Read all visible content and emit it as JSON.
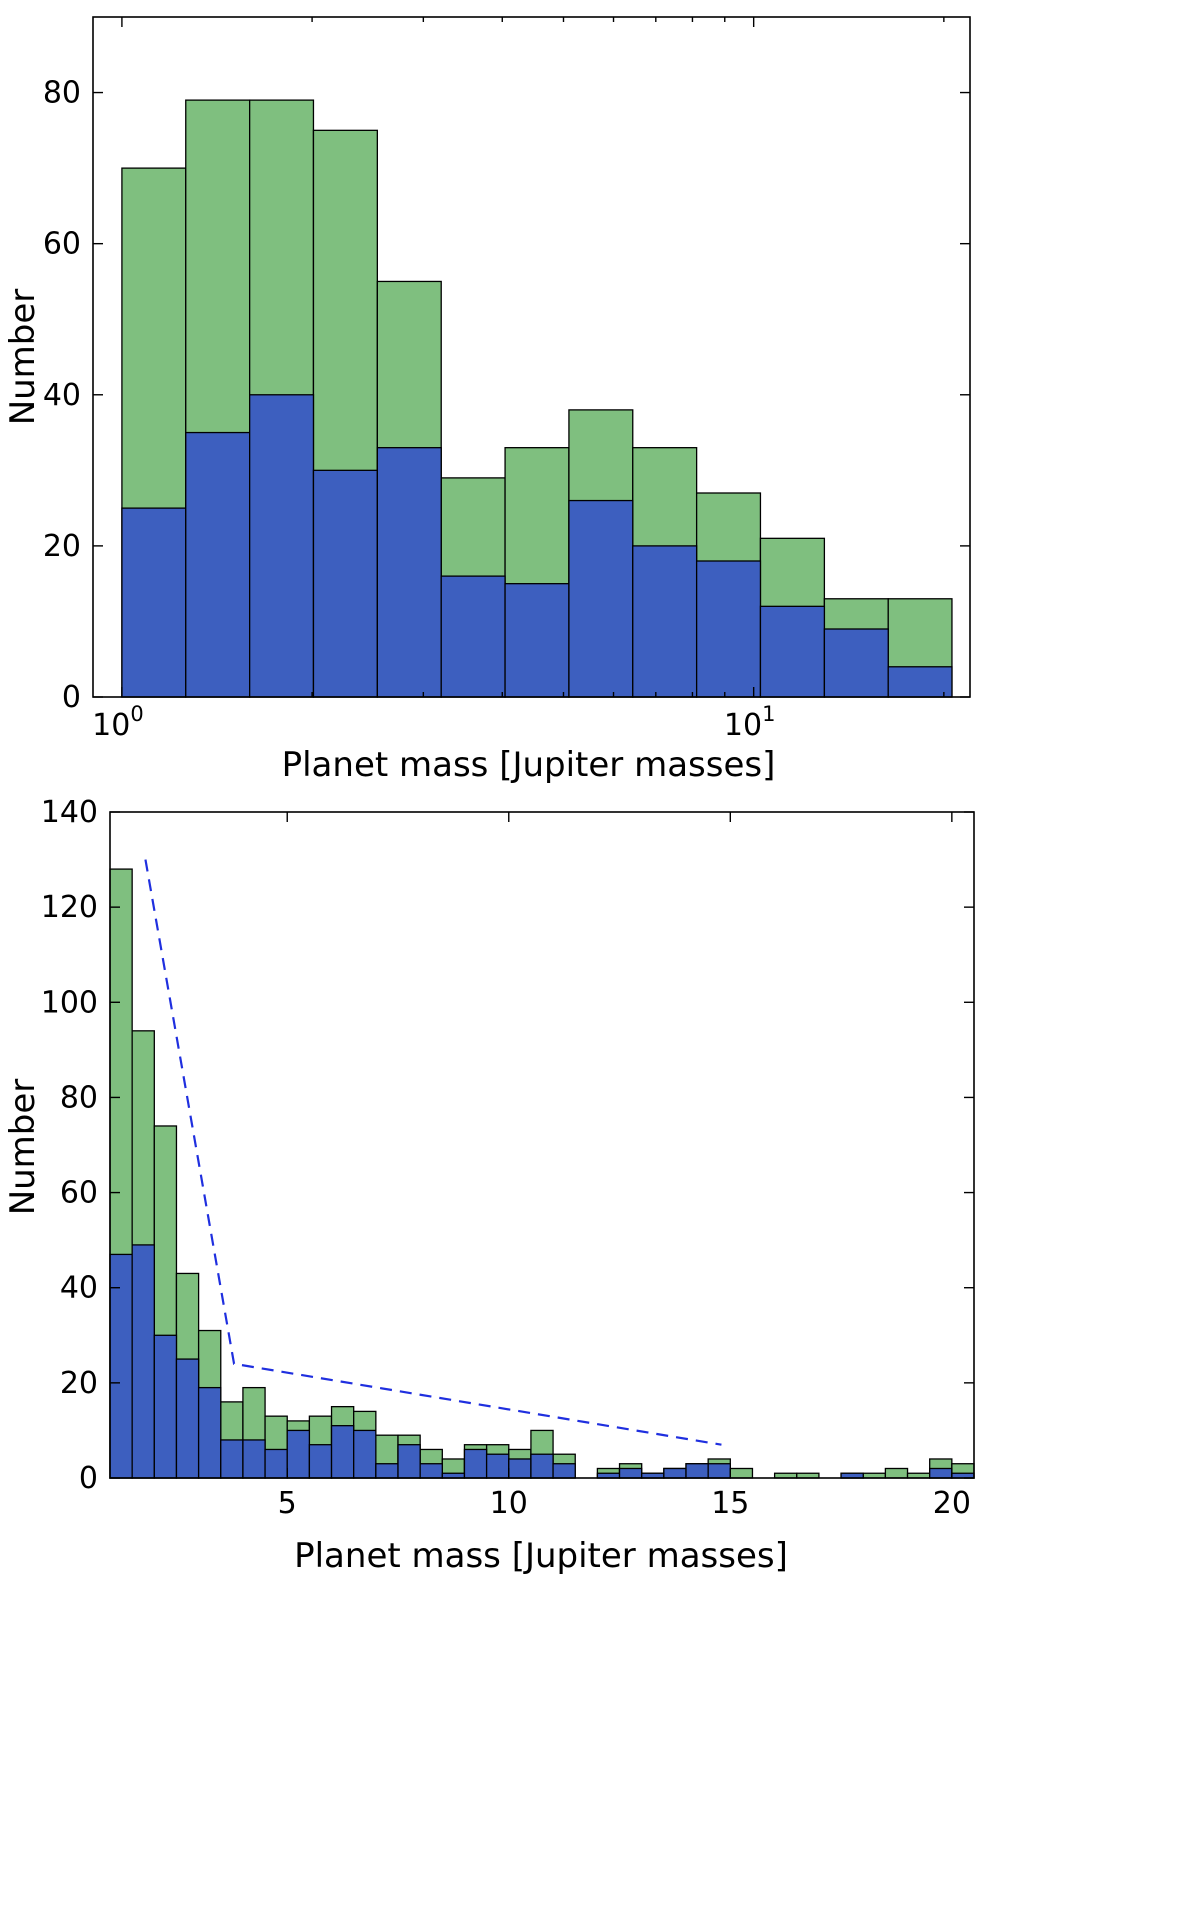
{
  "colors": {
    "total": "#7fbf7f",
    "subset": "#3d5fbf",
    "fit_line": "#1f2fdf"
  },
  "chart_data": [
    {
      "type": "bar",
      "xscale": "log",
      "xlim": [
        0.9,
        22
      ],
      "ylim": [
        0,
        90
      ],
      "grid": false,
      "legend": "none",
      "xlabel": "Planet mass [Jupiter masses]",
      "ylabel": "Number",
      "x_ticks": [
        {
          "value": 1,
          "base": "10",
          "exp": "0"
        },
        {
          "value": 10,
          "base": "10",
          "exp": "1"
        }
      ],
      "y_ticks": [
        0,
        20,
        40,
        60,
        80
      ],
      "bin_edges": [
        1.0,
        1.262,
        1.593,
        2.01,
        2.537,
        3.202,
        4.041,
        5.1,
        6.436,
        8.123,
        10.25,
        12.94,
        16.33,
        20.6
      ],
      "series": [
        {
          "values": [
            70,
            79,
            79,
            75,
            55,
            29,
            33,
            38,
            33,
            27,
            21,
            13,
            13
          ]
        },
        {
          "values": [
            25,
            35,
            40,
            30,
            33,
            16,
            15,
            26,
            20,
            18,
            12,
            9,
            4
          ]
        }
      ]
    },
    {
      "type": "bar",
      "xscale": "linear",
      "xlim": [
        1.0,
        20.5
      ],
      "ylim": [
        0,
        140
      ],
      "grid": false,
      "legend": "none",
      "xlabel": "Planet mass [Jupiter masses]",
      "ylabel": "Number",
      "x_ticks": [
        5,
        10,
        15,
        20
      ],
      "y_ticks": [
        0,
        20,
        40,
        60,
        80,
        100,
        120,
        140
      ],
      "bin_start": 1.0,
      "bin_width": 0.5,
      "series": [
        {
          "values": [
            128,
            94,
            74,
            43,
            31,
            16,
            19,
            13,
            12,
            13,
            15,
            14,
            9,
            9,
            6,
            4,
            7,
            7,
            6,
            10,
            5,
            0,
            2,
            3,
            1,
            2,
            3,
            4,
            2,
            0,
            1,
            1,
            0,
            1,
            1,
            2,
            1,
            4,
            3
          ]
        },
        {
          "values": [
            47,
            49,
            30,
            25,
            19,
            8,
            8,
            6,
            10,
            7,
            11,
            10,
            3,
            7,
            3,
            1,
            6,
            5,
            4,
            5,
            3,
            0,
            1,
            2,
            1,
            2,
            3,
            3,
            0,
            0,
            0,
            0,
            0,
            1,
            0,
            0,
            0,
            2,
            1
          ]
        }
      ],
      "fit_line": {
        "x": [
          1.8,
          3.8,
          14.8
        ],
        "y": [
          130,
          24,
          7
        ]
      }
    }
  ]
}
